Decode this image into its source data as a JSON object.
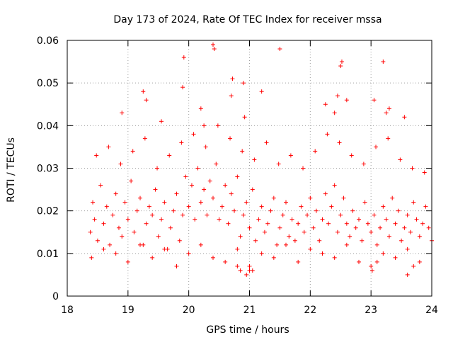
{
  "chart_data": {
    "type": "scatter",
    "title": "Day 173 of 2024, Rate Of TEC Index for receiver mssa",
    "xlabel": "GPS time / hours",
    "ylabel": "ROTI / TECUs",
    "xlim": [
      18,
      24
    ],
    "ylim": [
      0,
      0.06
    ],
    "x_ticks": [
      18,
      19,
      20,
      21,
      22,
      23,
      24
    ],
    "x_tick_labels": [
      "18",
      "19",
      "20",
      "21",
      "22",
      "23",
      "24"
    ],
    "y_ticks": [
      0,
      0.01,
      0.02,
      0.03,
      0.04,
      0.05,
      0.06
    ],
    "y_tick_labels": [
      "0",
      "0.01",
      "0.02",
      "0.03",
      "0.04",
      "0.05",
      "0.06"
    ],
    "grid": true,
    "marker": "+",
    "marker_color": "#ff0000",
    "series": [
      {
        "name": "ROTI",
        "x": [
          18.38,
          18.42,
          18.45,
          18.5,
          18.55,
          18.6,
          18.65,
          18.7,
          18.75,
          18.8,
          18.85,
          18.9,
          18.95,
          19.0,
          19.05,
          19.1,
          19.15,
          19.2,
          19.25,
          19.3,
          19.35,
          19.4,
          19.45,
          19.5,
          19.55,
          19.6,
          19.65,
          19.7,
          19.75,
          19.8,
          19.85,
          19.9,
          19.95,
          20.0,
          20.05,
          20.1,
          20.15,
          20.2,
          20.25,
          20.3,
          20.35,
          20.4,
          20.45,
          20.5,
          20.55,
          20.6,
          20.65,
          20.7,
          20.75,
          20.8,
          20.85,
          20.9,
          20.95,
          21.0,
          21.05,
          21.1,
          21.15,
          21.2,
          21.25,
          21.3,
          21.35,
          21.4,
          21.45,
          21.5,
          21.55,
          21.6,
          21.65,
          21.7,
          21.75,
          21.8,
          21.85,
          21.9,
          21.95,
          22.0,
          22.05,
          22.1,
          22.15,
          22.2,
          22.25,
          22.3,
          22.35,
          22.4,
          22.45,
          22.5,
          22.55,
          22.6,
          22.65,
          22.7,
          22.75,
          22.8,
          22.85,
          22.9,
          22.95,
          23.0,
          23.05,
          23.1,
          23.15,
          23.2,
          23.25,
          23.3,
          23.35,
          23.4,
          23.45,
          23.5,
          23.55,
          23.6,
          23.65,
          23.7,
          23.75,
          23.8,
          23.85,
          23.9,
          23.95,
          24.0,
          18.4,
          18.6,
          18.8,
          19.0,
          19.2,
          19.4,
          19.6,
          19.8,
          20.0,
          20.2,
          20.4,
          20.6,
          20.8,
          21.0,
          21.2,
          21.4,
          21.6,
          21.8,
          22.0,
          22.2,
          22.4,
          22.6,
          22.8,
          23.0,
          23.2,
          23.4,
          23.6,
          23.8,
          18.48,
          18.68,
          18.88,
          19.08,
          19.28,
          19.48,
          19.68,
          19.88,
          20.08,
          20.28,
          20.48,
          20.68,
          20.88,
          21.08,
          21.28,
          21.48,
          21.68,
          21.88,
          22.08,
          22.28,
          22.48,
          22.68,
          22.88,
          23.08,
          23.28,
          23.48,
          23.68,
          23.88,
          19.9,
          19.92,
          20.4,
          20.42,
          20.7,
          20.72,
          20.9,
          20.92,
          21.2,
          21.5,
          22.5,
          22.52,
          22.45,
          22.6,
          23.2,
          23.25,
          23.3,
          19.25,
          19.3,
          18.9,
          19.55,
          20.2,
          20.25,
          22.4,
          22.25,
          23.55,
          23.05,
          20.8,
          20.85,
          20.95,
          21.0,
          21.05,
          23.02,
          23.1,
          23.6,
          23.7
        ],
        "y": [
          0.015,
          0.022,
          0.018,
          0.013,
          0.026,
          0.017,
          0.021,
          0.012,
          0.019,
          0.024,
          0.016,
          0.014,
          0.022,
          0.018,
          0.027,
          0.015,
          0.02,
          0.023,
          0.012,
          0.017,
          0.021,
          0.019,
          0.025,
          0.014,
          0.018,
          0.022,
          0.011,
          0.016,
          0.02,
          0.024,
          0.013,
          0.019,
          0.028,
          0.021,
          0.026,
          0.018,
          0.03,
          0.022,
          0.025,
          0.019,
          0.027,
          0.023,
          0.031,
          0.018,
          0.021,
          0.026,
          0.017,
          0.024,
          0.02,
          0.028,
          0.014,
          0.019,
          0.022,
          0.016,
          0.025,
          0.013,
          0.018,
          0.021,
          0.015,
          0.017,
          0.02,
          0.023,
          0.012,
          0.016,
          0.019,
          0.022,
          0.014,
          0.018,
          0.013,
          0.017,
          0.021,
          0.015,
          0.019,
          0.023,
          0.016,
          0.02,
          0.013,
          0.018,
          0.024,
          0.017,
          0.021,
          0.026,
          0.015,
          0.019,
          0.023,
          0.017,
          0.014,
          0.02,
          0.016,
          0.018,
          0.013,
          0.022,
          0.017,
          0.015,
          0.019,
          0.012,
          0.016,
          0.021,
          0.018,
          0.014,
          0.023,
          0.017,
          0.02,
          0.013,
          0.016,
          0.019,
          0.015,
          0.022,
          0.018,
          0.014,
          0.017,
          0.021,
          0.016,
          0.013,
          0.009,
          0.011,
          0.01,
          0.008,
          0.012,
          0.009,
          0.011,
          0.007,
          0.01,
          0.012,
          0.009,
          0.008,
          0.011,
          0.006,
          0.01,
          0.009,
          0.012,
          0.008,
          0.011,
          0.01,
          0.009,
          0.012,
          0.008,
          0.007,
          0.01,
          0.009,
          0.011,
          0.008,
          0.033,
          0.035,
          0.031,
          0.034,
          0.037,
          0.03,
          0.033,
          0.036,
          0.038,
          0.035,
          0.04,
          0.037,
          0.034,
          0.032,
          0.036,
          0.031,
          0.033,
          0.03,
          0.034,
          0.038,
          0.036,
          0.033,
          0.031,
          0.035,
          0.037,
          0.032,
          0.03,
          0.029,
          0.049,
          0.056,
          0.059,
          0.058,
          0.047,
          0.051,
          0.05,
          0.042,
          0.048,
          0.058,
          0.054,
          0.055,
          0.047,
          0.046,
          0.055,
          0.043,
          0.044,
          0.048,
          0.046,
          0.043,
          0.041,
          0.044,
          0.04,
          0.043,
          0.045,
          0.042,
          0.046,
          0.007,
          0.006,
          0.005,
          0.007,
          0.006,
          0.006,
          0.008,
          0.005,
          0.007
        ]
      }
    ]
  }
}
